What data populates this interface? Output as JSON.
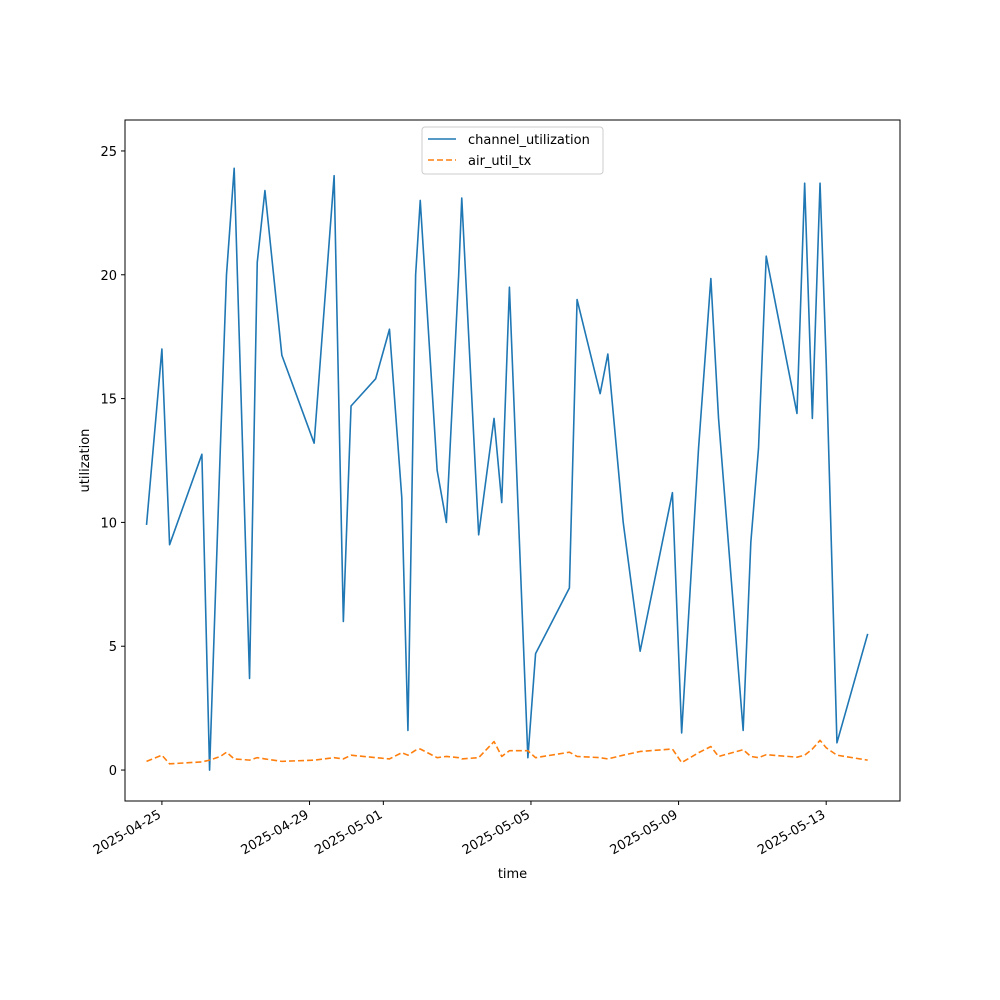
{
  "chart_data": {
    "type": "line",
    "title": "",
    "xlabel": "time",
    "ylabel": "utilization",
    "xlim": [
      "2025-04-24",
      "2025-05-15"
    ],
    "ylim": [
      -1.25,
      26.25
    ],
    "yticks": [
      0,
      5,
      10,
      15,
      20,
      25
    ],
    "xticks": [
      "2025-04-25",
      "2025-04-29",
      "2025-05-01",
      "2025-05-05",
      "2025-05-09",
      "2025-05-13"
    ],
    "grid": false,
    "legend_position": "upper center",
    "series": [
      {
        "name": "channel_utilization",
        "color": "#1f77b4",
        "style": "solid",
        "points": [
          [
            "2025-04-24 14:00",
            9.9
          ],
          [
            "2025-04-25 00:00",
            17.0
          ],
          [
            "2025-04-25 05:00",
            9.1
          ],
          [
            "2025-04-26 02:00",
            12.75
          ],
          [
            "2025-04-26 07:00",
            0.0
          ],
          [
            "2025-04-26 14:00",
            13.0
          ],
          [
            "2025-04-26 18:00",
            20.0
          ],
          [
            "2025-04-26 23:00",
            24.3
          ],
          [
            "2025-04-27 09:00",
            3.7
          ],
          [
            "2025-04-27 14:00",
            20.5
          ],
          [
            "2025-04-27 19:00",
            23.4
          ],
          [
            "2025-04-28 06:00",
            16.75
          ],
          [
            "2025-04-29 03:00",
            13.2
          ],
          [
            "2025-04-29 16:00",
            24.0
          ],
          [
            "2025-04-29 22:00",
            6.0
          ],
          [
            "2025-04-30 03:00",
            14.7
          ],
          [
            "2025-04-30 19:00",
            15.8
          ],
          [
            "2025-05-01 04:00",
            17.8
          ],
          [
            "2025-05-01 12:00",
            11.0
          ],
          [
            "2025-05-01 16:00",
            1.6
          ],
          [
            "2025-05-01 21:00",
            20.0
          ],
          [
            "2025-05-02 00:00",
            23.0
          ],
          [
            "2025-05-02 11:00",
            12.1
          ],
          [
            "2025-05-02 17:00",
            10.0
          ],
          [
            "2025-05-03 01:00",
            20.0
          ],
          [
            "2025-05-03 03:00",
            23.1
          ],
          [
            "2025-05-03 14:00",
            9.5
          ],
          [
            "2025-05-04 00:00",
            14.2
          ],
          [
            "2025-05-04 05:00",
            10.8
          ],
          [
            "2025-05-04 10:00",
            19.5
          ],
          [
            "2025-05-04 22:00",
            0.5
          ],
          [
            "2025-05-05 03:00",
            4.7
          ],
          [
            "2025-05-06 01:00",
            7.35
          ],
          [
            "2025-05-06 06:00",
            19.0
          ],
          [
            "2025-05-06 21:00",
            15.2
          ],
          [
            "2025-05-07 02:00",
            16.8
          ],
          [
            "2025-05-07 12:00",
            10.0
          ],
          [
            "2025-05-07 23:00",
            4.8
          ],
          [
            "2025-05-08 20:00",
            11.2
          ],
          [
            "2025-05-09 02:00",
            1.5
          ],
          [
            "2025-05-09 13:00",
            13.0
          ],
          [
            "2025-05-09 21:00",
            19.85
          ],
          [
            "2025-05-10 02:00",
            14.2
          ],
          [
            "2025-05-10 18:00",
            1.6
          ],
          [
            "2025-05-10 23:00",
            9.2
          ],
          [
            "2025-05-11 04:00",
            13.0
          ],
          [
            "2025-05-11 09:00",
            20.75
          ],
          [
            "2025-05-12 05:00",
            14.4
          ],
          [
            "2025-05-12 10:00",
            23.7
          ],
          [
            "2025-05-12 15:00",
            14.2
          ],
          [
            "2025-05-12 20:00",
            23.7
          ],
          [
            "2025-05-13 00:00",
            16.5
          ],
          [
            "2025-05-13 07:00",
            1.1
          ],
          [
            "2025-05-14 03:00",
            5.5
          ]
        ]
      },
      {
        "name": "air_util_tx",
        "color": "#ff7f0e",
        "style": "dashed",
        "points": [
          [
            "2025-04-24 14:00",
            0.35
          ],
          [
            "2025-04-25 00:00",
            0.6
          ],
          [
            "2025-04-25 05:00",
            0.25
          ],
          [
            "2025-04-26 02:00",
            0.33
          ],
          [
            "2025-04-26 07:00",
            0.4
          ],
          [
            "2025-04-26 14:00",
            0.55
          ],
          [
            "2025-04-26 18:00",
            0.72
          ],
          [
            "2025-04-26 23:00",
            0.45
          ],
          [
            "2025-04-27 09:00",
            0.4
          ],
          [
            "2025-04-27 14:00",
            0.5
          ],
          [
            "2025-04-27 19:00",
            0.45
          ],
          [
            "2025-04-28 06:00",
            0.35
          ],
          [
            "2025-04-29 03:00",
            0.4
          ],
          [
            "2025-04-29 16:00",
            0.5
          ],
          [
            "2025-04-29 22:00",
            0.45
          ],
          [
            "2025-04-30 03:00",
            0.6
          ],
          [
            "2025-04-30 19:00",
            0.5
          ],
          [
            "2025-05-01 04:00",
            0.45
          ],
          [
            "2025-05-01 12:00",
            0.7
          ],
          [
            "2025-05-01 16:00",
            0.6
          ],
          [
            "2025-05-01 21:00",
            0.8
          ],
          [
            "2025-05-02 00:00",
            0.85
          ],
          [
            "2025-05-02 11:00",
            0.5
          ],
          [
            "2025-05-02 17:00",
            0.55
          ],
          [
            "2025-05-03 01:00",
            0.5
          ],
          [
            "2025-05-03 03:00",
            0.45
          ],
          [
            "2025-05-03 14:00",
            0.5
          ],
          [
            "2025-05-04 00:00",
            1.15
          ],
          [
            "2025-05-04 05:00",
            0.55
          ],
          [
            "2025-05-04 10:00",
            0.78
          ],
          [
            "2025-05-04 22:00",
            0.78
          ],
          [
            "2025-05-05 03:00",
            0.5
          ],
          [
            "2025-05-06 01:00",
            0.72
          ],
          [
            "2025-05-06 06:00",
            0.55
          ],
          [
            "2025-05-06 21:00",
            0.5
          ],
          [
            "2025-05-07 02:00",
            0.45
          ],
          [
            "2025-05-07 12:00",
            0.6
          ],
          [
            "2025-05-07 23:00",
            0.75
          ],
          [
            "2025-05-08 20:00",
            0.85
          ],
          [
            "2025-05-09 02:00",
            0.3
          ],
          [
            "2025-05-09 13:00",
            0.7
          ],
          [
            "2025-05-09 21:00",
            0.95
          ],
          [
            "2025-05-10 02:00",
            0.55
          ],
          [
            "2025-05-10 18:00",
            0.82
          ],
          [
            "2025-05-10 23:00",
            0.55
          ],
          [
            "2025-05-11 04:00",
            0.5
          ],
          [
            "2025-05-11 09:00",
            0.62
          ],
          [
            "2025-05-12 05:00",
            0.52
          ],
          [
            "2025-05-12 10:00",
            0.6
          ],
          [
            "2025-05-12 15:00",
            0.85
          ],
          [
            "2025-05-12 20:00",
            1.2
          ],
          [
            "2025-05-13 00:00",
            0.9
          ],
          [
            "2025-05-13 07:00",
            0.6
          ],
          [
            "2025-05-14 03:00",
            0.4
          ]
        ]
      }
    ]
  }
}
